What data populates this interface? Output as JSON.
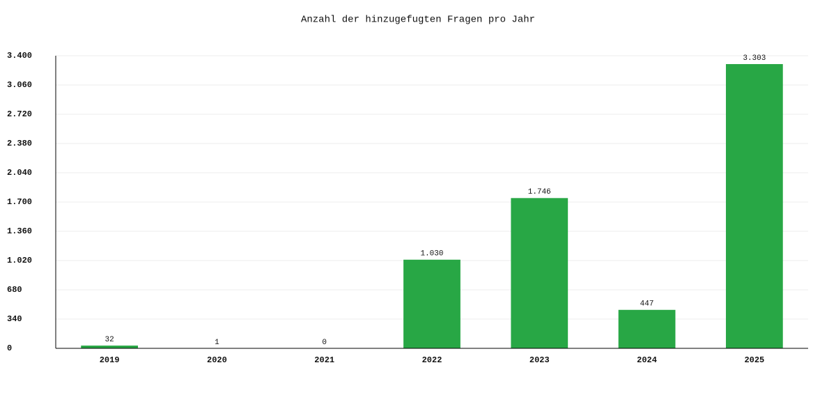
{
  "chart_data": {
    "type": "bar",
    "title": "Anzahl der hinzugefugten Fragen pro Jahr",
    "categories": [
      "2019",
      "2020",
      "2021",
      "2022",
      "2023",
      "2024",
      "2025"
    ],
    "values": [
      32,
      1,
      0,
      1030,
      1746,
      447,
      3303
    ],
    "value_labels": [
      "32",
      "1",
      "0",
      "1.030",
      "1.746",
      "447",
      "3.303"
    ],
    "color": "#28a745",
    "ylim": [
      0,
      3400
    ],
    "yticks": [
      0,
      340,
      680,
      {
        "value": 1020,
        "label": "1.020"
      },
      {
        "value": 1360,
        "label": "1.360"
      },
      {
        "value": 1700,
        "label": "1.700"
      },
      {
        "value": 2040,
        "label": "2.040"
      },
      {
        "value": 2380,
        "label": "2.380"
      },
      {
        "value": 2720,
        "label": "2.720"
      },
      {
        "value": 3060,
        "label": "3.060"
      },
      {
        "value": 3400,
        "label": "3.400"
      }
    ],
    "grid": true
  }
}
